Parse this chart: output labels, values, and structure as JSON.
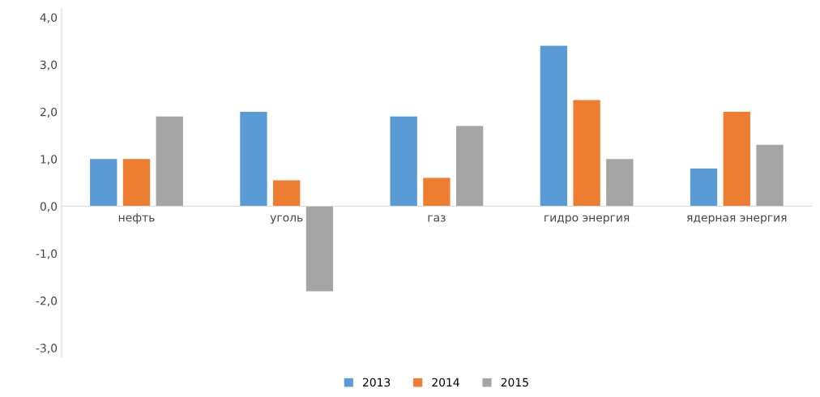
{
  "chart_data": {
    "type": "bar",
    "categories": [
      "нефть",
      "уголь",
      "газ",
      "гидро энергия",
      "ядерная энергия"
    ],
    "series": [
      {
        "name": "2013",
        "color": "#5b9bd5",
        "values": [
          1.0,
          2.0,
          1.9,
          3.4,
          0.8
        ]
      },
      {
        "name": "2014",
        "color": "#ed7d31",
        "values": [
          1.0,
          0.55,
          0.6,
          2.25,
          2.0
        ]
      },
      {
        "name": "2015",
        "color": "#a5a5a5",
        "values": [
          1.9,
          -1.8,
          1.7,
          1.0,
          1.3
        ]
      }
    ],
    "ylim": [
      -3.2,
      4.2
    ],
    "yticks": [
      {
        "value": -3,
        "label": "-3,0"
      },
      {
        "value": -2,
        "label": "-2,0"
      },
      {
        "value": -1,
        "label": "-1,0"
      },
      {
        "value": 0,
        "label": "0,0"
      },
      {
        "value": 1,
        "label": "1,0"
      },
      {
        "value": 2,
        "label": "2,0"
      },
      {
        "value": 3,
        "label": "3,0"
      },
      {
        "value": 4,
        "label": "4,0"
      }
    ],
    "grid": false,
    "legend": "bottom"
  }
}
